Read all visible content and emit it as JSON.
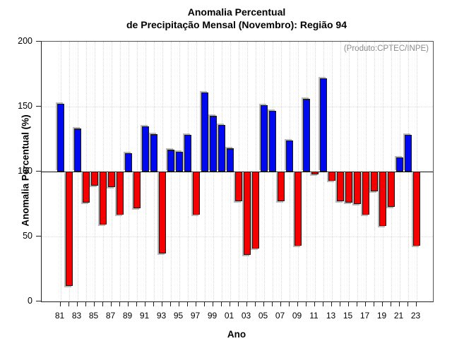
{
  "title": {
    "line1": "Anomalia Percentual",
    "line2": "de Precipitação Mensal (Novembro): Região 94"
  },
  "watermark": "(Produto:CPTEC/INPE)",
  "chart_data": {
    "type": "bar",
    "title": "Anomalia Percentual de Precipitação Mensal (Novembro): Região 94",
    "xlabel": "Ano",
    "ylabel": "Anomalia Percentual (%)",
    "ylim": [
      0,
      200
    ],
    "yticks": [
      0,
      50,
      100,
      150,
      200
    ],
    "baseline": 100,
    "grid": "dotted",
    "legend": null,
    "x": [
      1981,
      1982,
      1983,
      1984,
      1985,
      1986,
      1987,
      1988,
      1989,
      1990,
      1991,
      1992,
      1993,
      1994,
      1995,
      1996,
      1997,
      1998,
      1999,
      2000,
      2001,
      2002,
      2003,
      2004,
      2005,
      2006,
      2007,
      2008,
      2009,
      2010,
      2011,
      2012,
      2013,
      2014,
      2015,
      2016,
      2017,
      2018,
      2019,
      2020,
      2021,
      2022,
      2023
    ],
    "x_tick_labels": [
      "81",
      "83",
      "85",
      "87",
      "89",
      "91",
      "93",
      "95",
      "97",
      "99",
      "01",
      "03",
      "05",
      "07",
      "09",
      "11",
      "13",
      "15",
      "17",
      "19",
      "21",
      "23"
    ],
    "values": [
      152,
      12,
      133,
      76,
      89,
      59,
      88,
      67,
      114,
      72,
      135,
      129,
      37,
      117,
      115,
      128,
      67,
      161,
      143,
      136,
      118,
      77,
      36,
      41,
      151,
      147,
      77,
      124,
      43,
      156,
      98,
      172,
      93,
      77,
      76,
      75,
      67,
      85,
      58,
      73,
      111,
      128,
      43
    ],
    "colors": {
      "above_baseline": "#0008f0",
      "below_baseline": "#f50000",
      "bar_outline": "#1a1a1a",
      "watermark": "#8a8a8a",
      "baseline_line": "#111111"
    }
  }
}
